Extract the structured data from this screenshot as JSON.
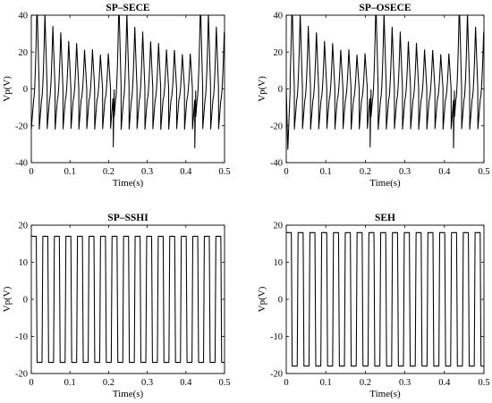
{
  "chart_data": [
    {
      "type": "line",
      "title": "SP–SECE",
      "xlabel": "Time(s)",
      "ylabel": "Vp(V)",
      "xlim": [
        0,
        0.5
      ],
      "ylim": [
        -40,
        40
      ],
      "xticks": [
        0,
        0.1,
        0.2,
        0.3,
        0.4,
        0.5
      ],
      "yticks": [
        -40,
        -20,
        0,
        20,
        40
      ],
      "waveform": "sece_decaying_spikes",
      "vibration_period_s": 0.0205,
      "extraction_times_s": [
        0.0,
        0.212,
        0.423
      ],
      "series": [
        {
          "x": [
            0.0,
            0.005,
            0.01,
            0.015,
            0.02,
            0.025,
            0.03,
            0.035,
            0.04,
            0.05,
            0.06,
            0.07,
            0.08,
            0.1,
            0.12,
            0.14,
            0.16,
            0.18,
            0.2,
            0.21,
            0.215,
            0.22,
            0.225,
            0.23,
            0.24,
            0.25,
            0.27,
            0.29,
            0.31,
            0.33,
            0.35,
            0.37,
            0.39,
            0.41,
            0.42,
            0.425,
            0.43,
            0.44,
            0.45,
            0.47,
            0.49,
            0.5
          ],
          "y": [
            0,
            -5,
            10,
            40,
            2,
            -22,
            32,
            0,
            -22,
            25,
            -20,
            22,
            -18,
            -18,
            -19,
            16,
            -20,
            14,
            -21,
            -23,
            0,
            -33,
            38,
            4,
            -22,
            30,
            -20,
            25,
            -19,
            21,
            -19,
            17,
            -20,
            14,
            -21,
            -33,
            40,
            -22,
            30,
            -20,
            22,
            -18
          ]
        }
      ]
    },
    {
      "type": "line",
      "title": "SP–OSECE",
      "xlabel": "Time(s)",
      "ylabel": "Vp(V)",
      "xlim": [
        0,
        0.5
      ],
      "ylim": [
        -40,
        40
      ],
      "xticks": [
        0,
        0.1,
        0.2,
        0.3,
        0.4,
        0.5
      ],
      "yticks": [
        -40,
        -20,
        0,
        20,
        40
      ],
      "waveform": "sece_decaying_spikes",
      "vibration_period_s": 0.0205,
      "extraction_times_s": [
        0.0,
        0.212,
        0.423
      ],
      "series": [
        {
          "x": [
            0.0,
            0.004,
            0.01,
            0.015,
            0.02,
            0.025,
            0.03,
            0.035,
            0.04,
            0.05,
            0.06,
            0.07,
            0.08,
            0.1,
            0.12,
            0.14,
            0.16,
            0.18,
            0.2,
            0.21,
            0.215,
            0.22,
            0.225,
            0.23,
            0.24,
            0.25,
            0.27,
            0.29,
            0.31,
            0.33,
            0.35,
            0.37,
            0.39,
            0.41,
            0.42,
            0.425,
            0.43,
            0.44,
            0.45,
            0.47,
            0.49,
            0.5
          ],
          "y": [
            0,
            -33,
            20,
            40,
            2,
            -22,
            32,
            0,
            -22,
            25,
            -20,
            22,
            -18,
            -18,
            -19,
            16,
            -20,
            14,
            -21,
            -23,
            0,
            -33,
            38,
            4,
            -22,
            30,
            -20,
            25,
            -19,
            21,
            -19,
            17,
            -20,
            14,
            -21,
            -33,
            40,
            -22,
            30,
            -20,
            22,
            -18
          ]
        }
      ]
    },
    {
      "type": "line",
      "title": "SP–SSHI",
      "xlabel": "Time(s)",
      "ylabel": "Vp(V)",
      "xlim": [
        0,
        0.5
      ],
      "ylim": [
        -20,
        20
      ],
      "xticks": [
        0,
        0.1,
        0.2,
        0.3,
        0.4,
        0.5
      ],
      "yticks": [
        -20,
        -10,
        0,
        10,
        20
      ],
      "waveform": "square",
      "period_s": 0.02985,
      "series": [
        {
          "x": [
            0.0,
            0.0075,
            0.015,
            0.0225,
            0.03,
            0.0375,
            0.045,
            0.0525,
            0.06
          ],
          "y": [
            17,
            17,
            -17,
            -17,
            17,
            17,
            -17,
            -17,
            17
          ]
        }
      ]
    },
    {
      "type": "line",
      "title": "SEH",
      "xlabel": "Time(s)",
      "ylabel": "Vp(V)",
      "xlim": [
        0,
        0.5
      ],
      "ylim": [
        -20,
        20
      ],
      "xticks": [
        0,
        0.1,
        0.2,
        0.3,
        0.4,
        0.5
      ],
      "yticks": [
        -20,
        -10,
        0,
        10,
        20
      ],
      "waveform": "square",
      "period_s": 0.02985,
      "series": [
        {
          "x": [
            0.0,
            0.0075,
            0.015,
            0.0225,
            0.03,
            0.0375,
            0.045,
            0.0525,
            0.06
          ],
          "y": [
            18,
            18,
            -18,
            -18,
            18,
            18,
            -18,
            -18,
            18
          ]
        }
      ]
    }
  ]
}
